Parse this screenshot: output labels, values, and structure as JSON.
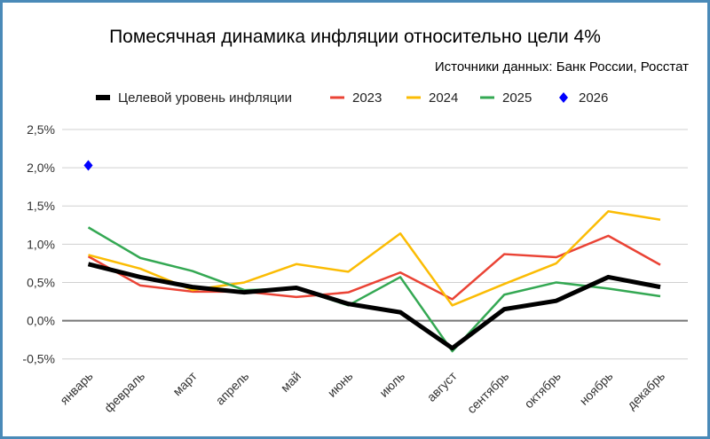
{
  "chart_data": {
    "type": "line",
    "title": "Помесячная динамика инфляции относительно цели 4%",
    "subtitle": "Источники данных: Банк России, Росстат",
    "categories": [
      "январь",
      "февраль",
      "март",
      "апрель",
      "май",
      "июнь",
      "июль",
      "август",
      "сентябрь",
      "октябрь",
      "ноябрь",
      "декабрь"
    ],
    "ylim": [
      -0.5,
      2.5
    ],
    "yticks": [
      -0.5,
      0,
      0.5,
      1.0,
      1.5,
      2.0,
      2.5
    ],
    "ytick_labels": [
      "-0,5%",
      "0,0%",
      "0,5%",
      "1,0%",
      "1,5%",
      "2,0%",
      "2,5%"
    ],
    "grid": true,
    "legend_placement": "top",
    "series": [
      {
        "name": "Целевой уровень инфляции",
        "color": "#000000",
        "marker": "none",
        "values": [
          0.74,
          0.57,
          0.44,
          0.37,
          0.43,
          0.22,
          0.11,
          -0.36,
          0.15,
          0.26,
          0.57,
          0.44
        ]
      },
      {
        "name": "2023",
        "color": "#ea4335",
        "marker": "none",
        "values": [
          0.84,
          0.46,
          0.38,
          0.38,
          0.31,
          0.37,
          0.63,
          0.28,
          0.87,
          0.83,
          1.11,
          0.73
        ]
      },
      {
        "name": "2024",
        "color": "#fbbc04",
        "marker": "none",
        "values": [
          0.86,
          0.68,
          0.4,
          0.5,
          0.74,
          0.64,
          1.14,
          0.2,
          0.48,
          0.75,
          1.43,
          1.32
        ]
      },
      {
        "name": "2025",
        "color": "#34a853",
        "marker": "none",
        "values": [
          1.22,
          0.82,
          0.65,
          0.4,
          0.42,
          0.2,
          0.57,
          -0.4,
          0.34,
          0.5,
          0.42,
          0.32
        ]
      },
      {
        "name": "2026",
        "color": "#0000ff",
        "marker": "diamond",
        "values": [
          2.03,
          null,
          null,
          null,
          null,
          null,
          null,
          null,
          null,
          null,
          null,
          null
        ]
      }
    ]
  }
}
